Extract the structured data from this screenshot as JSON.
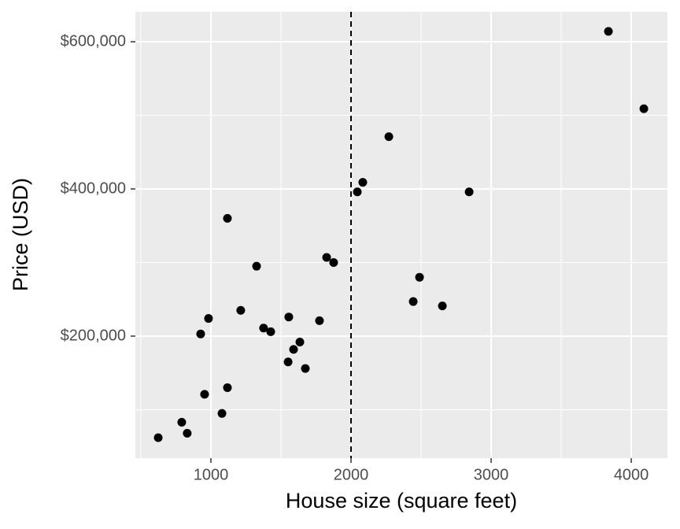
{
  "chart_data": {
    "type": "scatter",
    "x_label": "House size (square feet)",
    "y_label": "Price (USD)",
    "x": [
      624,
      792,
      831,
      927,
      955,
      983,
      1079,
      1118,
      1118,
      1213,
      1326,
      1376,
      1427,
      1551,
      1556,
      1590,
      1635,
      1674,
      1775,
      1826,
      1876,
      2045,
      2084,
      2270,
      2444,
      2489,
      2652,
      2843,
      3837,
      4090
    ],
    "values": [
      62000,
      83000,
      68000,
      203000,
      121000,
      224000,
      95000,
      360000,
      130000,
      235000,
      295000,
      211000,
      206000,
      165000,
      226000,
      182000,
      192000,
      156000,
      221000,
      307000,
      300000,
      396000,
      409000,
      471000,
      247000,
      280000,
      241000,
      396000,
      614000,
      509000
    ],
    "color": "#000000",
    "xlim": [
      461,
      4258
    ],
    "ylim": [
      34225,
      640642
    ],
    "xticks": [
      1000,
      2000,
      3000,
      4000
    ],
    "yticks": [
      {
        "value": 200000,
        "label": "$200,000"
      },
      {
        "value": 400000,
        "label": "$400,000"
      },
      {
        "value": 600000,
        "label": "$600,000"
      }
    ],
    "x_minor_breaks": [
      500,
      1500,
      2500,
      3500
    ],
    "y_minor_breaks": [
      100000,
      300000,
      500000
    ],
    "vline": 2000,
    "grid": true
  }
}
